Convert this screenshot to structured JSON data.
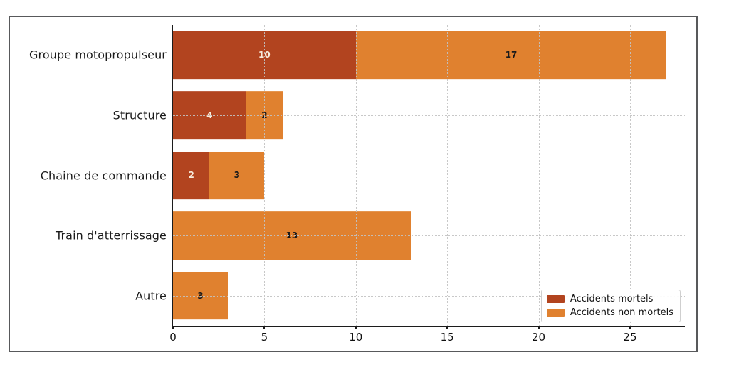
{
  "figure": {
    "background": "#ffffff",
    "frame_border_color": "#58595b",
    "spine_color": "#1c1c1c",
    "grid_color": "#c3c3c3"
  },
  "chart_data": {
    "type": "bar",
    "orientation": "horizontal",
    "stacked": true,
    "title": "",
    "xlabel": "",
    "ylabel": "",
    "categories": [
      "Groupe motopropulseur",
      "Structure",
      "Chaine de commande",
      "Train d'atterrissage",
      "Autre"
    ],
    "series": [
      {
        "name": "Accidents mortels",
        "color": "#b2441f",
        "value_label_color": "#f8ecdc",
        "values": [
          10,
          4,
          2,
          0,
          0
        ]
      },
      {
        "name": "Accidents non mortels",
        "color": "#e0812f",
        "value_label_color": "#1a1a1a",
        "values": [
          17,
          2,
          3,
          13,
          3
        ]
      }
    ],
    "totals": [
      27,
      6,
      5,
      13,
      3
    ],
    "xlim": [
      0,
      28
    ],
    "xticks": [
      0,
      5,
      10,
      15,
      20,
      25
    ],
    "grid": true,
    "grid_style": "dotted",
    "bar_thickness_ratio": 0.8,
    "legend_position": "lower right"
  }
}
